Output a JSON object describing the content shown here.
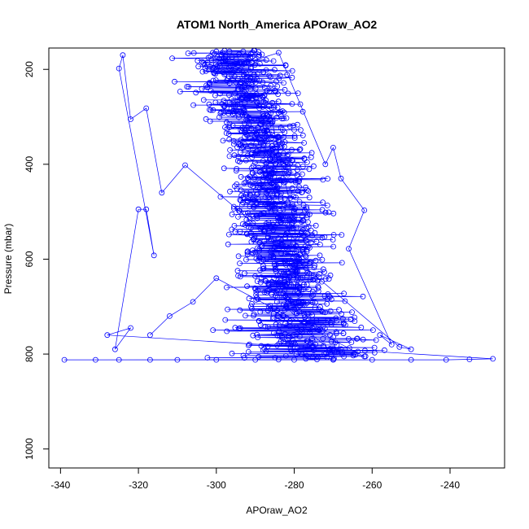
{
  "chart_data": {
    "type": "scatter",
    "title": "ATOM1 North_America APOraw_AO2",
    "xlabel": "APOraw_AO2",
    "ylabel": "Pressure (mbar)",
    "xlim": [
      -343,
      -226
    ],
    "ylim": [
      1040,
      155
    ],
    "y_reversed": true,
    "xticks": [
      -340,
      -320,
      -300,
      -280,
      -260,
      -240
    ],
    "yticks": [
      200,
      400,
      600,
      800,
      1000
    ],
    "xtick_labels": [
      "-340",
      "-320",
      "-300",
      "-280",
      "-260",
      "-240"
    ],
    "ytick_labels": [
      "200",
      "400",
      "600",
      "800",
      "1000"
    ],
    "grid": false,
    "legend": "none",
    "series": [
      {
        "color": "#0000ff",
        "marker": "open-circle",
        "connected": true,
        "envelope": {
          "pressure": [
            160,
            200,
            250,
            300,
            350,
            400,
            450,
            500,
            550,
            600,
            650,
            700,
            750,
            780,
            800,
            812
          ],
          "center": [
            -296,
            -295,
            -293,
            -290,
            -288,
            -287,
            -286,
            -285,
            -283,
            -282,
            -281,
            -280,
            -278,
            -276,
            -274,
            -272
          ],
          "spread": [
            10,
            12,
            12,
            11,
            10,
            10,
            10,
            11,
            11,
            11,
            12,
            13,
            15,
            16,
            17,
            18
          ]
        },
        "points": [
          {
            "x": -339,
            "y": 812
          },
          {
            "x": -331,
            "y": 812
          },
          {
            "x": -325,
            "y": 812
          },
          {
            "x": -317,
            "y": 812
          },
          {
            "x": -310,
            "y": 812
          },
          {
            "x": -300,
            "y": 812
          },
          {
            "x": -290,
            "y": 812
          },
          {
            "x": -280,
            "y": 812
          },
          {
            "x": -270,
            "y": 812
          },
          {
            "x": -260,
            "y": 812
          },
          {
            "x": -250,
            "y": 812
          },
          {
            "x": -241,
            "y": 812
          },
          {
            "x": -235,
            "y": 811
          },
          {
            "x": -229,
            "y": 810
          },
          {
            "x": -328,
            "y": 760
          },
          {
            "x": -322,
            "y": 745
          },
          {
            "x": -326,
            "y": 790
          },
          {
            "x": -320,
            "y": 495
          },
          {
            "x": -318,
            "y": 495
          },
          {
            "x": -316,
            "y": 592
          },
          {
            "x": -325,
            "y": 198
          },
          {
            "x": -324,
            "y": 170
          },
          {
            "x": -322,
            "y": 305
          },
          {
            "x": -318,
            "y": 282
          },
          {
            "x": -314,
            "y": 460
          },
          {
            "x": -308,
            "y": 402
          },
          {
            "x": -253,
            "y": 785
          },
          {
            "x": -250,
            "y": 790
          },
          {
            "x": -258,
            "y": 760
          },
          {
            "x": -255,
            "y": 780
          },
          {
            "x": -266,
            "y": 578
          },
          {
            "x": -262,
            "y": 497
          },
          {
            "x": -268,
            "y": 430
          },
          {
            "x": -270,
            "y": 365
          },
          {
            "x": -272,
            "y": 400
          },
          {
            "x": -284,
            "y": 165
          },
          {
            "x": -290,
            "y": 180
          },
          {
            "x": -300,
            "y": 200
          },
          {
            "x": -286,
            "y": 292
          },
          {
            "x": -284,
            "y": 380
          },
          {
            "x": -280,
            "y": 520
          },
          {
            "x": -279,
            "y": 640
          },
          {
            "x": -282,
            "y": 700
          },
          {
            "x": -276,
            "y": 755
          },
          {
            "x": -271,
            "y": 790
          },
          {
            "x": -262,
            "y": 805
          },
          {
            "x": -300,
            "y": 640
          },
          {
            "x": -306,
            "y": 690
          },
          {
            "x": -312,
            "y": 720
          },
          {
            "x": -317,
            "y": 760
          }
        ]
      }
    ]
  }
}
